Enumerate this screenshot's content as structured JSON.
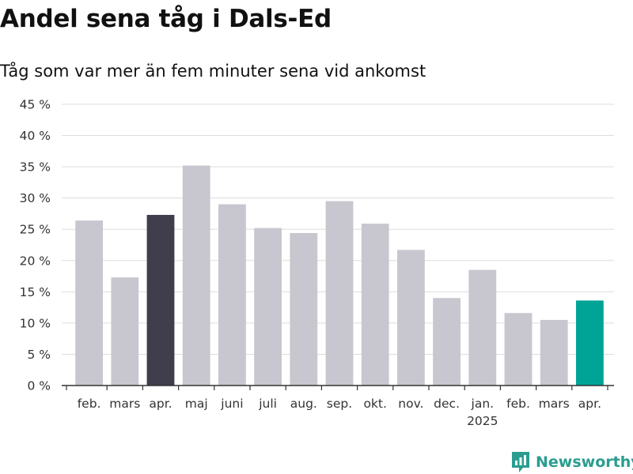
{
  "header": {
    "title": "Andel sena tåg i Dals-Ed",
    "subtitle": "Tåg som var mer än fem minuter sena vid ankomst"
  },
  "brand": {
    "name": "Newsworthy",
    "icon": "newsworthy-logo-icon"
  },
  "colors": {
    "default_bar": "#c8c7cf",
    "highlight_prev_year": "#3f3e4a",
    "highlight_latest": "#00a497",
    "grid": "#dddddd",
    "axis": "#333333",
    "brand": "#2a9d8f"
  },
  "chart_data": {
    "type": "bar",
    "categories": [
      "feb.",
      "mars",
      "apr.",
      "maj",
      "juni",
      "juli",
      "aug.",
      "sep.",
      "okt.",
      "nov.",
      "dec.",
      "jan.",
      "feb.",
      "mars",
      "apr."
    ],
    "year_labels": [
      {
        "index": 11,
        "text": "2025"
      }
    ],
    "values": [
      26.4,
      17.3,
      27.3,
      35.2,
      29.0,
      25.2,
      24.4,
      29.5,
      25.9,
      21.7,
      14.0,
      18.5,
      11.6,
      10.5,
      13.6
    ],
    "bar_colors": [
      "#c8c7cf",
      "#c8c7cf",
      "#3f3e4a",
      "#c8c7cf",
      "#c8c7cf",
      "#c8c7cf",
      "#c8c7cf",
      "#c8c7cf",
      "#c8c7cf",
      "#c8c7cf",
      "#c8c7cf",
      "#c8c7cf",
      "#c8c7cf",
      "#c8c7cf",
      "#00a497"
    ],
    "yticks": [
      0,
      5,
      10,
      15,
      20,
      25,
      30,
      35,
      40,
      45
    ],
    "ytick_labels": [
      "0 %",
      "5 %",
      "10 %",
      "15 %",
      "20 %",
      "25 %",
      "30 %",
      "35 %",
      "40 %",
      "45 %"
    ],
    "ylim": [
      0,
      45
    ],
    "grid": true,
    "xlabel": "",
    "ylabel": ""
  }
}
